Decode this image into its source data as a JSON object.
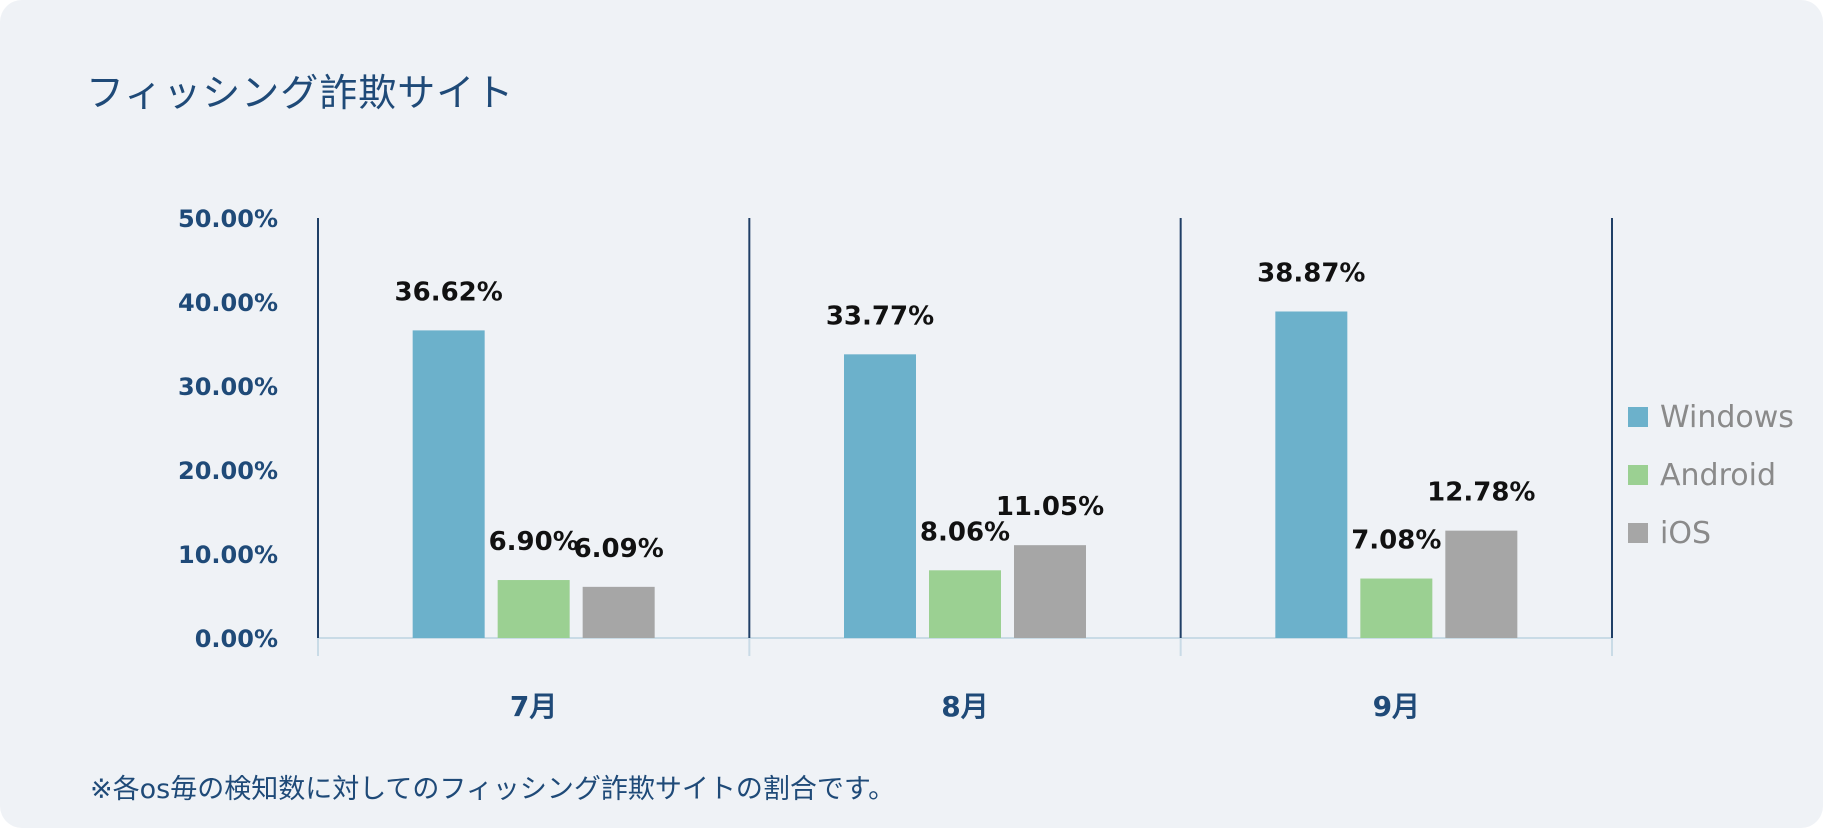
{
  "title": "フィッシング詐欺サイト",
  "note": "※各os毎の検知数に対してのフィッシング詐欺サイトの割合です。",
  "colors": {
    "background": "#eff2f6",
    "text": "#1f4a78",
    "axis": "#1f3f66",
    "baseline": "#c9dbe6"
  },
  "chart_data": {
    "type": "bar",
    "title": "フィッシング詐欺サイト",
    "categories": [
      "7月",
      "8月",
      "9月"
    ],
    "series": [
      {
        "name": "Windows",
        "color": "#6cb1cb",
        "values": [
          36.62,
          33.77,
          38.87
        ],
        "labels": [
          "36.62%",
          "33.77%",
          "38.87%"
        ]
      },
      {
        "name": "Android",
        "color": "#9bd092",
        "values": [
          6.9,
          8.06,
          7.08
        ],
        "labels": [
          "6.90%",
          "8.06%",
          "7.08%"
        ]
      },
      {
        "name": "iOS",
        "color": "#a6a6a6",
        "values": [
          6.09,
          11.05,
          12.78
        ],
        "labels": [
          "6.09%",
          "11.05%",
          "12.78%"
        ]
      }
    ],
    "ylim": [
      0,
      50
    ],
    "yticks": [
      {
        "value": 0,
        "label": "0.00%"
      },
      {
        "value": 10,
        "label": "10.00%"
      },
      {
        "value": 20,
        "label": "20.00%"
      },
      {
        "value": 30,
        "label": "30.00%"
      },
      {
        "value": 40,
        "label": "40.00%"
      },
      {
        "value": 50,
        "label": "50.00%"
      }
    ],
    "xlabel": "",
    "ylabel": "",
    "grid": false,
    "legend": "right"
  }
}
